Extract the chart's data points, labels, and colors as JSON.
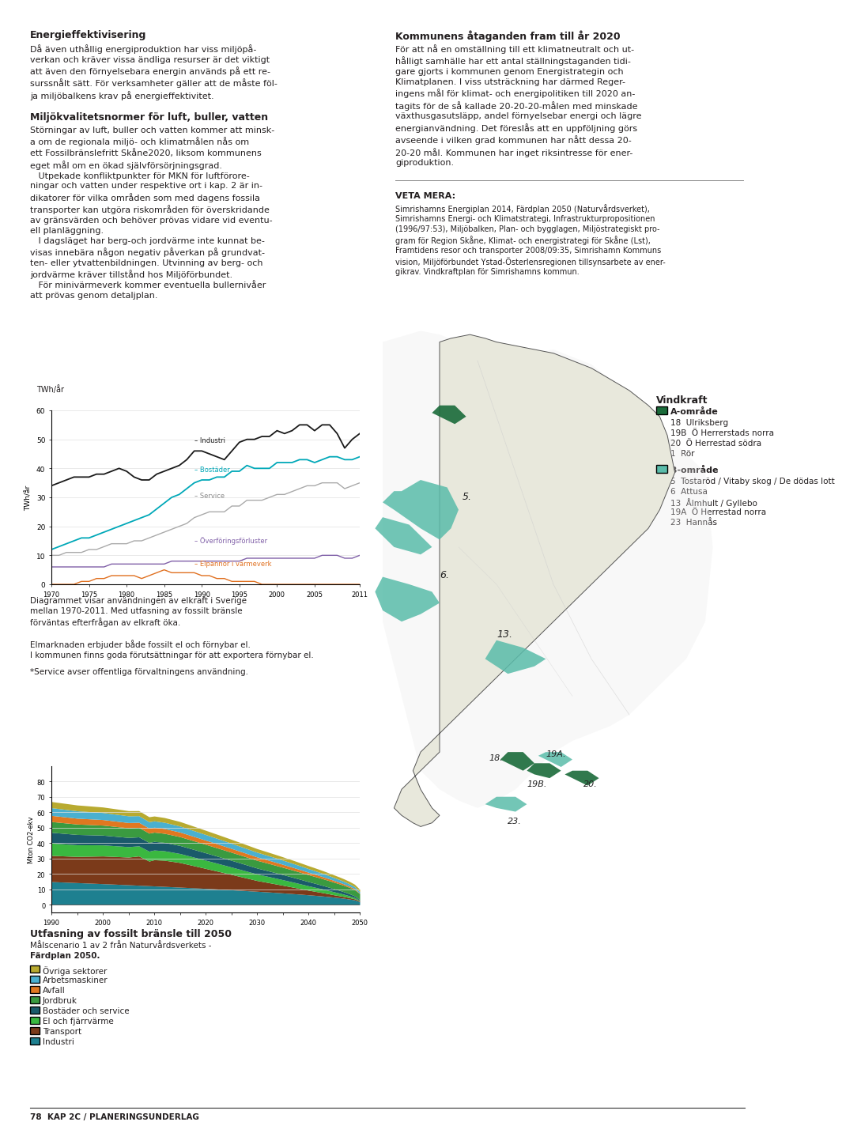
{
  "page_bg": "#ffffff",
  "text_color": "#231f20",
  "title1": "Energieffektivisering",
  "body1": "Då även uthållig energiproduktion har viss miljöpå-\nverkan och kräver vissa ändliga resurser är det viktigt\natt även den förnyelsebara energin används på ett re-\nsurssnålt sätt. För verksamheter gäller att de måste föl-\nja miljöbalkens krav på energieffektivitet.",
  "title2": "Miljökvalitetsnormer för luft, buller, vatten",
  "body2": "Störningar av luft, buller och vatten kommer att minsk-\na om de regionala miljö- och klimatmålen nås om\nett Fossilbränslefritt Skåne2020, liksom kommunens\neget mål om en ökad självförsörjningsgrad.\n   Utpekade konfliktpunkter för MKN för luftförore-\nningar och vatten under respektive ort i kap. 2 är in-\ndikatorer för vilka områden som med dagens fossila\ntransporter kan utgöra riskområden för överskridande\nav gränsvärden och behöver prövas vidare vid eventu-\nell planläggning.\n   I dagsläget har berg-och jordvärme inte kunnat be-\nvisas innebära någon negativ påverkan på grundvat-\nten- eller ytvattenbildningen. Utvinning av berg- och\njordvärme kräver tillstånd hos Miljöförbundet.\n   För minivärmeverk kommer eventuella bullernivåer\natt prövas genom detaljplan.",
  "title3": "Kommunens åtaganden fram till år 2020",
  "body3": "För att nå en omställning till ett klimatneutralt och ut-\nhålligt samhälle har ett antal ställningstaganden tidi-\ngare gjorts i kommunen genom Energistrategin och\nKlimatplanen. I viss utsträckning har därmed Reger-\ningens mål för klimat- och energipolitiken till 2020 an-\ntagits för de så kallade 20-20-20-målen med minskade\nväxthusgasutsläpp, andel förnyelsebar energi och lägre\nenergianvändning. Det föreslås att en uppföljning görs\navseende i vilken grad kommunen har nått dessa 20-\n20-20 mål. Kommunen har inget riksintresse för ener-\ngiproduktion.",
  "veta_mera_title": "VETA MERA:",
  "veta_mera_body": "Simrishamns Energiplan 2014, Färdplan 2050 (Naturvårdsverket),\nSimrishamns Energi- och Klimatstrategi, Infrastrukturpropositionen\n(1996/97:53), Miljöbalken, Plan- och bygglagen, Miljöstrategiskt pro-\ngram för Region Skåne, Klimat- och energistrategi för Skåne (Lst),\nFramtidens resor och transporter 2008/09:35, Simrishamn Kommuns\nvision, Miljöförbundet Ystad-Österlensregionen tillsynsarbete av ener-\ngikrav. Vindkraftplan för Simrishamns kommun.",
  "chart1_ylabel": "TWh/år",
  "chart1_caption": "Diagrammet visar användningen av elkraft i Sverige\nmellan 1970-2011. Med utfasning av fossilt bränsle\nförväntas efterfrågan av elkraft öka.",
  "chart1_caption2": "Elmarknaden erbjuder både fossilt el och förnybar el.\nI kommunen finns goda förutsättningar för att exportera förnybar el.",
  "chart1_caption3": "*Service avser offentliga förvaltningens användning.",
  "chart2_title": "Utfasning av fossilt bränsle till 2050",
  "chart2_subtitle1": "Målscenario 1 av 2 från Naturvårdsverkets -",
  "chart2_subtitle2": "Färdplan 2050.",
  "chart2_ylabel": "Mton CO2-ekv",
  "chart2_legend": [
    "Övriga sektorer",
    "Arbetsmaskiner",
    "Avfall",
    "Jordbruk",
    "Bostäder och service",
    "El och fjärrvärme",
    "Transport",
    "Industri"
  ],
  "chart2_colors": [
    "#c8b560",
    "#4bacc6",
    "#e07020",
    "#4aac5a",
    "#1a6b8a",
    "#2e8b57",
    "#8b5a2b",
    "#1e7090"
  ],
  "vindkraft_title": "Vindkraft",
  "vindkraft_a_title": "A-område",
  "vindkraft_a_items": [
    "18  Ulriksberg",
    "19B  Ö Herrerstads norra",
    "20  Ö Herrestad södra",
    "1  Rör"
  ],
  "vindkraft_b_title": "B-område",
  "vindkraft_b_items": [
    "5  Tostaröd / Vitaby skog / De dödas lott",
    "6  Attusa",
    "13  Ålmhult / Gyllebo",
    "19A  Ö Herrestad norra",
    "23  Hannås"
  ],
  "vindkraft_a_color": "#1a6b3a",
  "vindkraft_b_color": "#5abcaa",
  "footer_text": "78  KAP 2C / PLANERINGSUNDERLAG"
}
